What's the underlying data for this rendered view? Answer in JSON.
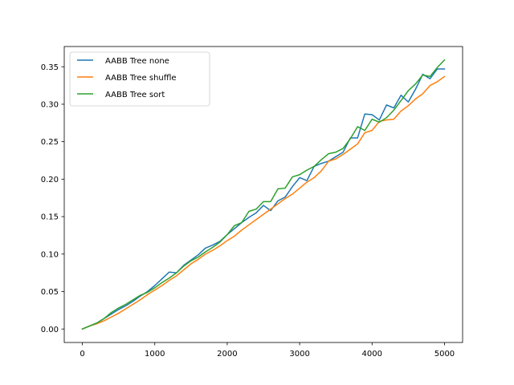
{
  "chart_data": {
    "type": "line",
    "title": "",
    "xlabel": "",
    "ylabel": "",
    "xlim": [
      -250,
      5250
    ],
    "ylim": [
      -0.018,
      0.377
    ],
    "xticks": [
      0,
      1000,
      2000,
      3000,
      4000,
      5000
    ],
    "xtick_labels": [
      "0",
      "1000",
      "2000",
      "3000",
      "4000",
      "5000"
    ],
    "yticks": [
      0.0,
      0.05,
      0.1,
      0.15,
      0.2,
      0.25,
      0.3,
      0.35
    ],
    "ytick_labels": [
      "0.00",
      "0.05",
      "0.10",
      "0.15",
      "0.20",
      "0.25",
      "0.30",
      "0.35"
    ],
    "grid": false,
    "legend_position": "upper-left",
    "x": [
      0,
      100,
      200,
      300,
      400,
      500,
      600,
      700,
      800,
      900,
      1000,
      1100,
      1200,
      1300,
      1400,
      1500,
      1600,
      1700,
      1800,
      1900,
      2000,
      2100,
      2200,
      2300,
      2400,
      2500,
      2600,
      2700,
      2800,
      2900,
      3000,
      3100,
      3200,
      3300,
      3400,
      3500,
      3600,
      3700,
      3800,
      3900,
      4000,
      4100,
      4200,
      4300,
      4400,
      4500,
      4600,
      4700,
      4800,
      4900,
      5000
    ],
    "series": [
      {
        "name": "AABB Tree none",
        "color": "#1f77b4",
        "values": [
          0.0,
          0.004,
          0.008,
          0.014,
          0.02,
          0.026,
          0.031,
          0.037,
          0.044,
          0.05,
          0.058,
          0.067,
          0.076,
          0.075,
          0.085,
          0.092,
          0.099,
          0.108,
          0.112,
          0.117,
          0.126,
          0.134,
          0.142,
          0.149,
          0.155,
          0.165,
          0.158,
          0.171,
          0.176,
          0.19,
          0.202,
          0.198,
          0.217,
          0.221,
          0.224,
          0.23,
          0.236,
          0.255,
          0.255,
          0.287,
          0.286,
          0.279,
          0.299,
          0.295,
          0.312,
          0.303,
          0.32,
          0.34,
          0.334,
          0.347,
          0.347
        ]
      },
      {
        "name": "AABB Tree shuffle",
        "color": "#ff7f0e",
        "values": [
          0.0,
          0.004,
          0.007,
          0.011,
          0.016,
          0.021,
          0.027,
          0.033,
          0.039,
          0.046,
          0.052,
          0.058,
          0.065,
          0.071,
          0.079,
          0.087,
          0.093,
          0.1,
          0.105,
          0.111,
          0.118,
          0.124,
          0.132,
          0.139,
          0.146,
          0.153,
          0.16,
          0.167,
          0.174,
          0.18,
          0.188,
          0.196,
          0.202,
          0.211,
          0.224,
          0.227,
          0.233,
          0.24,
          0.247,
          0.262,
          0.265,
          0.277,
          0.279,
          0.28,
          0.291,
          0.298,
          0.307,
          0.314,
          0.325,
          0.33,
          0.337
        ]
      },
      {
        "name": "AABB Tree sort",
        "color": "#2ca02c",
        "values": [
          0.0,
          0.004,
          0.008,
          0.014,
          0.022,
          0.028,
          0.033,
          0.039,
          0.045,
          0.049,
          0.055,
          0.062,
          0.068,
          0.075,
          0.084,
          0.091,
          0.096,
          0.103,
          0.109,
          0.116,
          0.126,
          0.138,
          0.142,
          0.157,
          0.16,
          0.17,
          0.17,
          0.187,
          0.188,
          0.203,
          0.206,
          0.212,
          0.217,
          0.226,
          0.234,
          0.236,
          0.241,
          0.254,
          0.27,
          0.265,
          0.28,
          0.276,
          0.282,
          0.292,
          0.305,
          0.318,
          0.327,
          0.339,
          0.337,
          0.349,
          0.359
        ]
      }
    ]
  }
}
